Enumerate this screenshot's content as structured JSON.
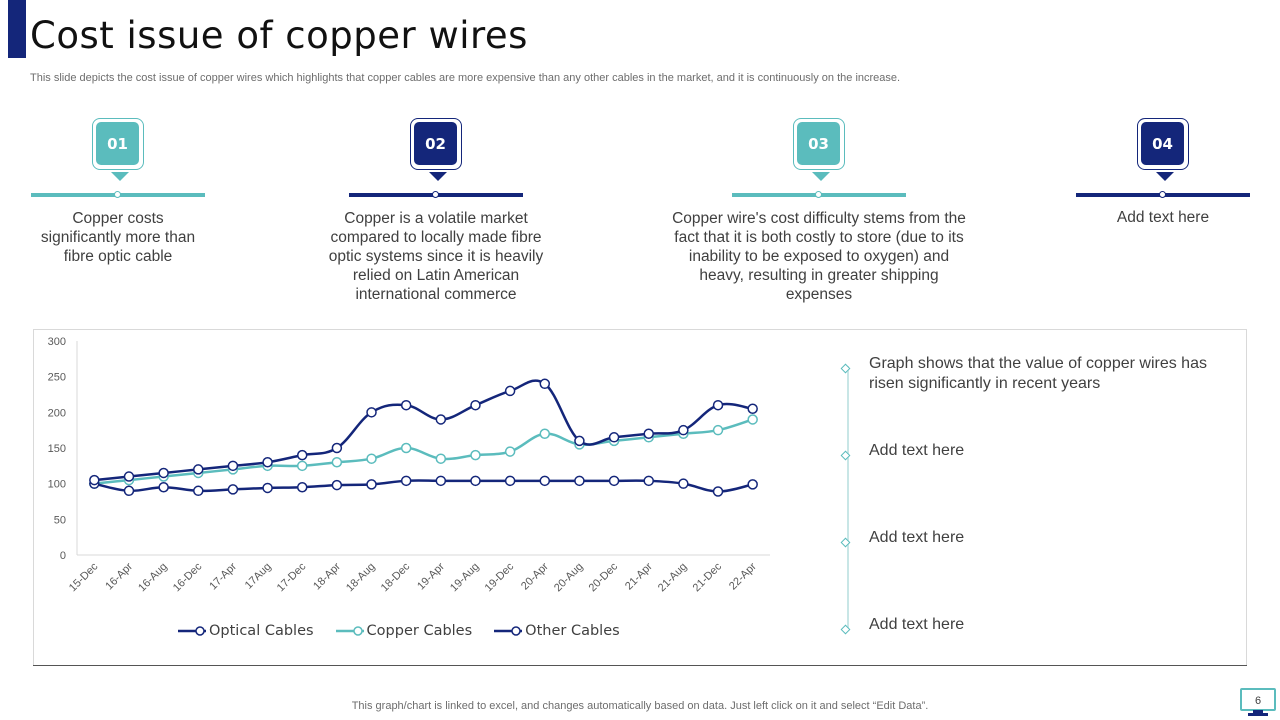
{
  "title": "Cost issue of copper wires",
  "subtitle": "This slide depicts the cost issue of copper wires which highlights that copper cables are more expensive than any other cables in the market, and it is continuously on the increase.",
  "colors": {
    "navy": "#14267a",
    "teal": "#5bbcbd",
    "text": "#404040"
  },
  "steps": [
    {
      "number": "01",
      "text": "Copper costs significantly more than fibre optic cable",
      "color": "#5bbcbd"
    },
    {
      "number": "02",
      "text": "Copper is a volatile market compared to locally made fibre optic systems since it is heavily relied on Latin American international commerce",
      "color": "#14267a"
    },
    {
      "number": "03",
      "text": "Copper wire's cost difficulty stems from the fact that it is both costly to store (due to its inability to be exposed to oxygen) and heavy, resulting in greater shipping expenses",
      "color": "#5bbcbd"
    },
    {
      "number": "04",
      "text": "Add text here",
      "color": "#14267a"
    }
  ],
  "notes": [
    "Graph shows that the value of copper wires has risen significantly in recent years",
    "Add text here",
    "Add text here",
    "Add text here"
  ],
  "footer": "This graph/chart is linked to excel, and changes automatically based on data. Just left click on it and select “Edit Data”.",
  "page_number": "6",
  "chart_data": {
    "type": "line",
    "title": "",
    "xlabel": "",
    "ylabel": "",
    "ylim": [
      0,
      300
    ],
    "yticks": [
      0,
      50,
      100,
      150,
      200,
      250,
      300
    ],
    "grid": false,
    "legend_position": "bottom",
    "categories": [
      "15-Dec",
      "16-Apr",
      "16-Aug",
      "16-Dec",
      "17-Apr",
      "17Aug",
      "17-Dec",
      "18-Apr",
      "18-Aug",
      "18-Dec",
      "19-Apr",
      "19-Aug",
      "19-Dec",
      "20-Apr",
      "20-Aug",
      "20-Dec",
      "21-Apr",
      "21-Aug",
      "21-Dec",
      "22-Apr"
    ],
    "series": [
      {
        "name": "Optical Cables",
        "color": "#14267a",
        "values": [
          105,
          110,
          115,
          120,
          125,
          130,
          140,
          150,
          200,
          210,
          190,
          210,
          230,
          240,
          160,
          165,
          170,
          175,
          210,
          205
        ]
      },
      {
        "name": "Copper Cables",
        "color": "#5bbcbd",
        "values": [
          100,
          105,
          110,
          115,
          120,
          125,
          125,
          130,
          135,
          150,
          135,
          140,
          145,
          170,
          155,
          160,
          165,
          170,
          175,
          190
        ]
      },
      {
        "name": "Other Cables",
        "color": "#14267a",
        "values": [
          100,
          90,
          95,
          90,
          92,
          94,
          95,
          98,
          99,
          104,
          104,
          104,
          104,
          104,
          104,
          104,
          104,
          100,
          89,
          99
        ]
      }
    ]
  }
}
